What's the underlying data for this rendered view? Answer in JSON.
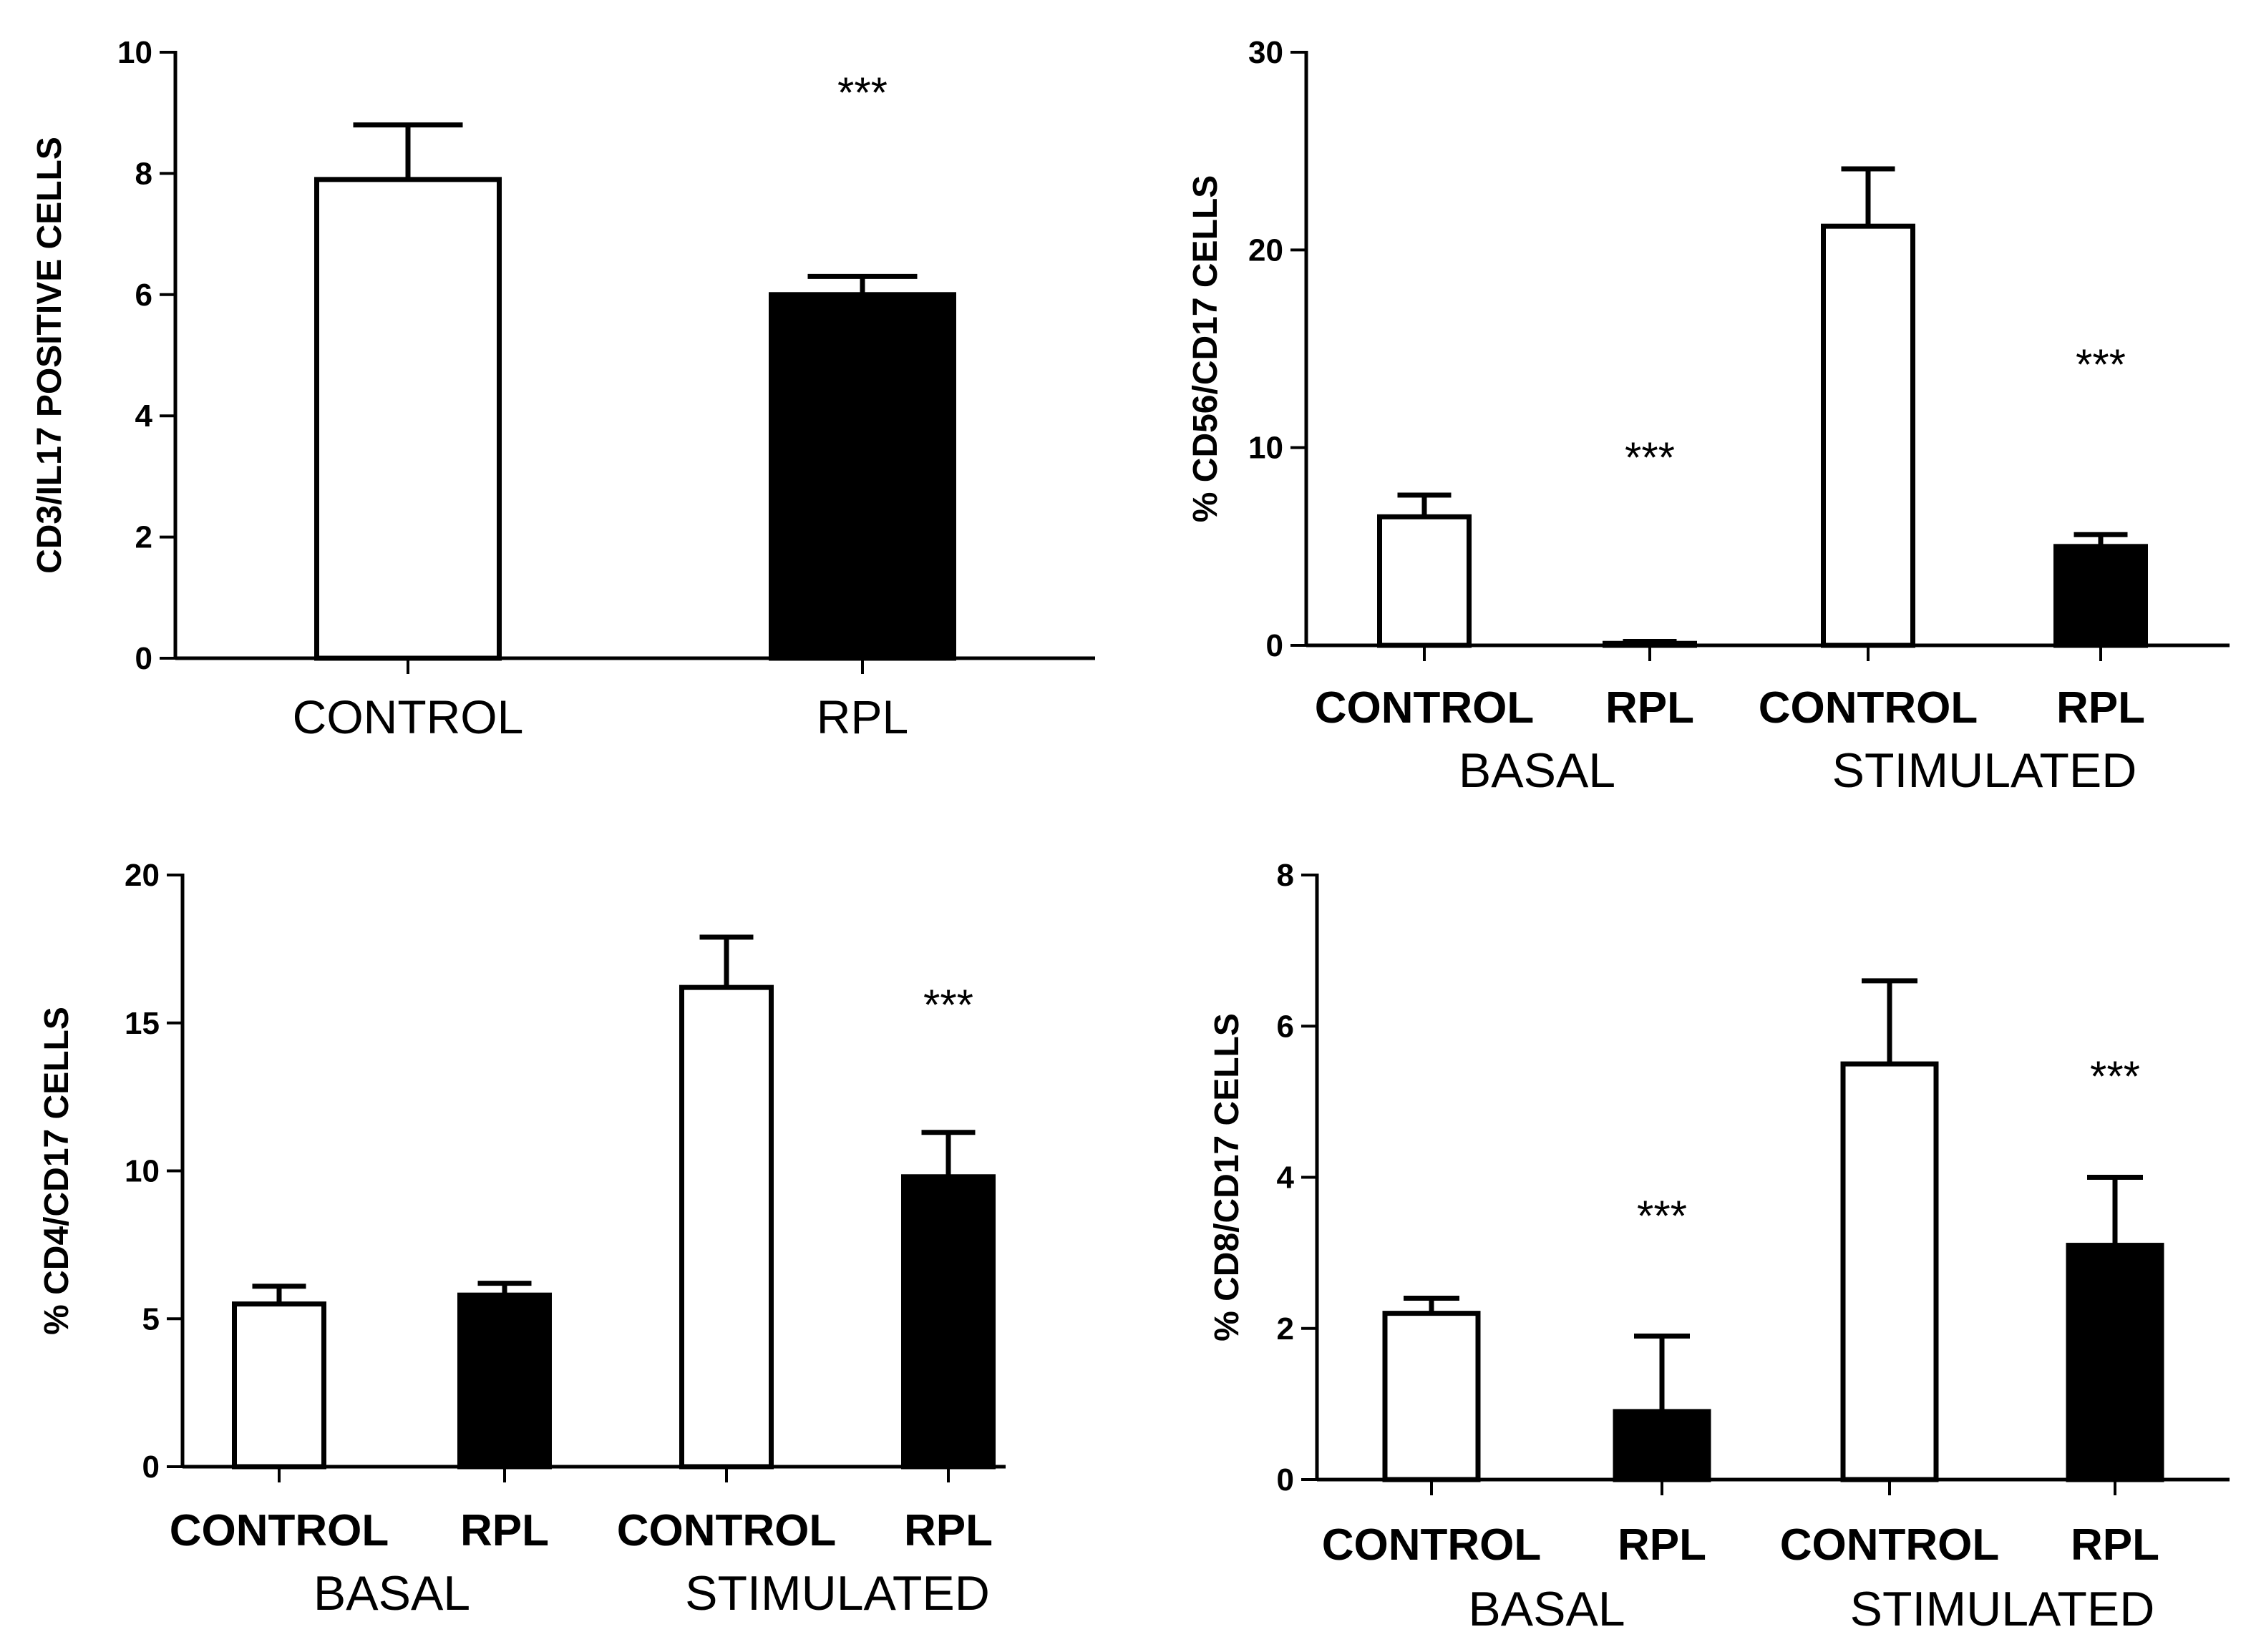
{
  "chart_data": [
    {
      "type": "bar",
      "panel": "top-left",
      "ylabel": "CD3/IL17 POSITIVE CELLS",
      "ylim": [
        0,
        10
      ],
      "yticks": [
        0,
        2,
        4,
        6,
        8,
        10
      ],
      "category_style": "plain",
      "bars": [
        {
          "category": "CONTROL",
          "group": "",
          "value": 7.9,
          "error": 0.9,
          "fill": "#ffffff",
          "sig": ""
        },
        {
          "category": "RPL",
          "group": "",
          "value": 6.0,
          "error": 0.3,
          "fill": "#000000",
          "sig": "***"
        }
      ],
      "groups": []
    },
    {
      "type": "bar",
      "panel": "top-right",
      "ylabel": "% CD56/CD17 CELLS",
      "ylim": [
        0,
        30
      ],
      "yticks": [
        0,
        10,
        20,
        30
      ],
      "category_style": "bold",
      "bars": [
        {
          "category": "CONTROL",
          "group": "BASAL",
          "value": 6.5,
          "error": 1.1,
          "fill": "#ffffff",
          "sig": ""
        },
        {
          "category": "RPL",
          "group": "BASAL",
          "value": 0.1,
          "error": 0.1,
          "fill": "#000000",
          "sig": "***"
        },
        {
          "category": "CONTROL",
          "group": "STIMULATED",
          "value": 21.2,
          "error": 2.9,
          "fill": "#ffffff",
          "sig": ""
        },
        {
          "category": "RPL",
          "group": "STIMULATED",
          "value": 5.0,
          "error": 0.6,
          "fill": "#000000",
          "sig": "***"
        }
      ],
      "groups": [
        "BASAL",
        "STIMULATED"
      ]
    },
    {
      "type": "bar",
      "panel": "bottom-left",
      "ylabel": "% CD4/CD17 CELLS",
      "ylim": [
        0,
        20
      ],
      "yticks": [
        0,
        5,
        10,
        15,
        20
      ],
      "category_style": "bold",
      "bars": [
        {
          "category": "CONTROL",
          "group": "BASAL",
          "value": 5.5,
          "error": 0.6,
          "fill": "#ffffff",
          "sig": ""
        },
        {
          "category": "RPL",
          "group": "BASAL",
          "value": 5.8,
          "error": 0.4,
          "fill": "#000000",
          "sig": ""
        },
        {
          "category": "CONTROL",
          "group": "STIMULATED",
          "value": 16.2,
          "error": 1.7,
          "fill": "#ffffff",
          "sig": ""
        },
        {
          "category": "RPL",
          "group": "STIMULATED",
          "value": 9.8,
          "error": 1.5,
          "fill": "#000000",
          "sig": "***"
        }
      ],
      "groups": [
        "BASAL",
        "STIMULATED"
      ]
    },
    {
      "type": "bar",
      "panel": "bottom-right",
      "ylabel": "% CD8/CD17 CELLS",
      "ylim": [
        0,
        8
      ],
      "yticks": [
        0,
        2,
        4,
        6,
        8
      ],
      "category_style": "bold",
      "bars": [
        {
          "category": "CONTROL",
          "group": "BASAL",
          "value": 2.2,
          "error": 0.2,
          "fill": "#ffffff",
          "sig": ""
        },
        {
          "category": "RPL",
          "group": "BASAL",
          "value": 0.9,
          "error": 1.0,
          "fill": "#000000",
          "sig": "***"
        },
        {
          "category": "CONTROL",
          "group": "STIMULATED",
          "value": 5.5,
          "error": 1.1,
          "fill": "#ffffff",
          "sig": ""
        },
        {
          "category": "RPL",
          "group": "STIMULATED",
          "value": 3.1,
          "error": 0.9,
          "fill": "#000000",
          "sig": "***"
        }
      ],
      "groups": [
        "BASAL",
        "STIMULATED"
      ]
    }
  ]
}
